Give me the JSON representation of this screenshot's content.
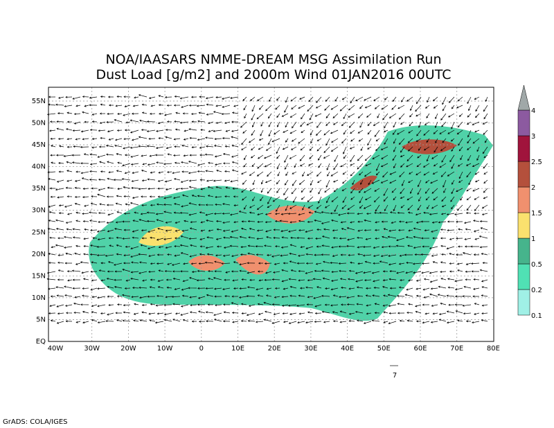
{
  "title": [
    "NOA/IAASARS NMME-DREAM MSG Assimilation Run",
    "Dust Load [g/m2] and 2000m Wind 01JAN2016 00UTC"
  ],
  "lon_ticks": [
    "40W",
    "30W",
    "20W",
    "10W",
    "0",
    "10E",
    "20E",
    "30E",
    "40E",
    "50E",
    "60E",
    "70E",
    "80E"
  ],
  "lat_ticks": [
    "EQ",
    "5N",
    "10N",
    "15N",
    "20N",
    "25N",
    "30N",
    "35N",
    "40N",
    "45N",
    "50N",
    "55N"
  ],
  "colorbar": {
    "levels": [
      "0.1",
      "0.2",
      "0.5",
      "1",
      "1.5",
      "2",
      "2.5",
      "3",
      "4"
    ],
    "colors": [
      "#a0f0e6",
      "#50e1b4",
      "#46b48c",
      "#fae16e",
      "#f0906e",
      "#b4503c",
      "#a0143c",
      "#8c5aa0",
      "#a0a8a8"
    ]
  },
  "reference_vector": "7",
  "footer": "GrADS: COLA/IGES"
}
